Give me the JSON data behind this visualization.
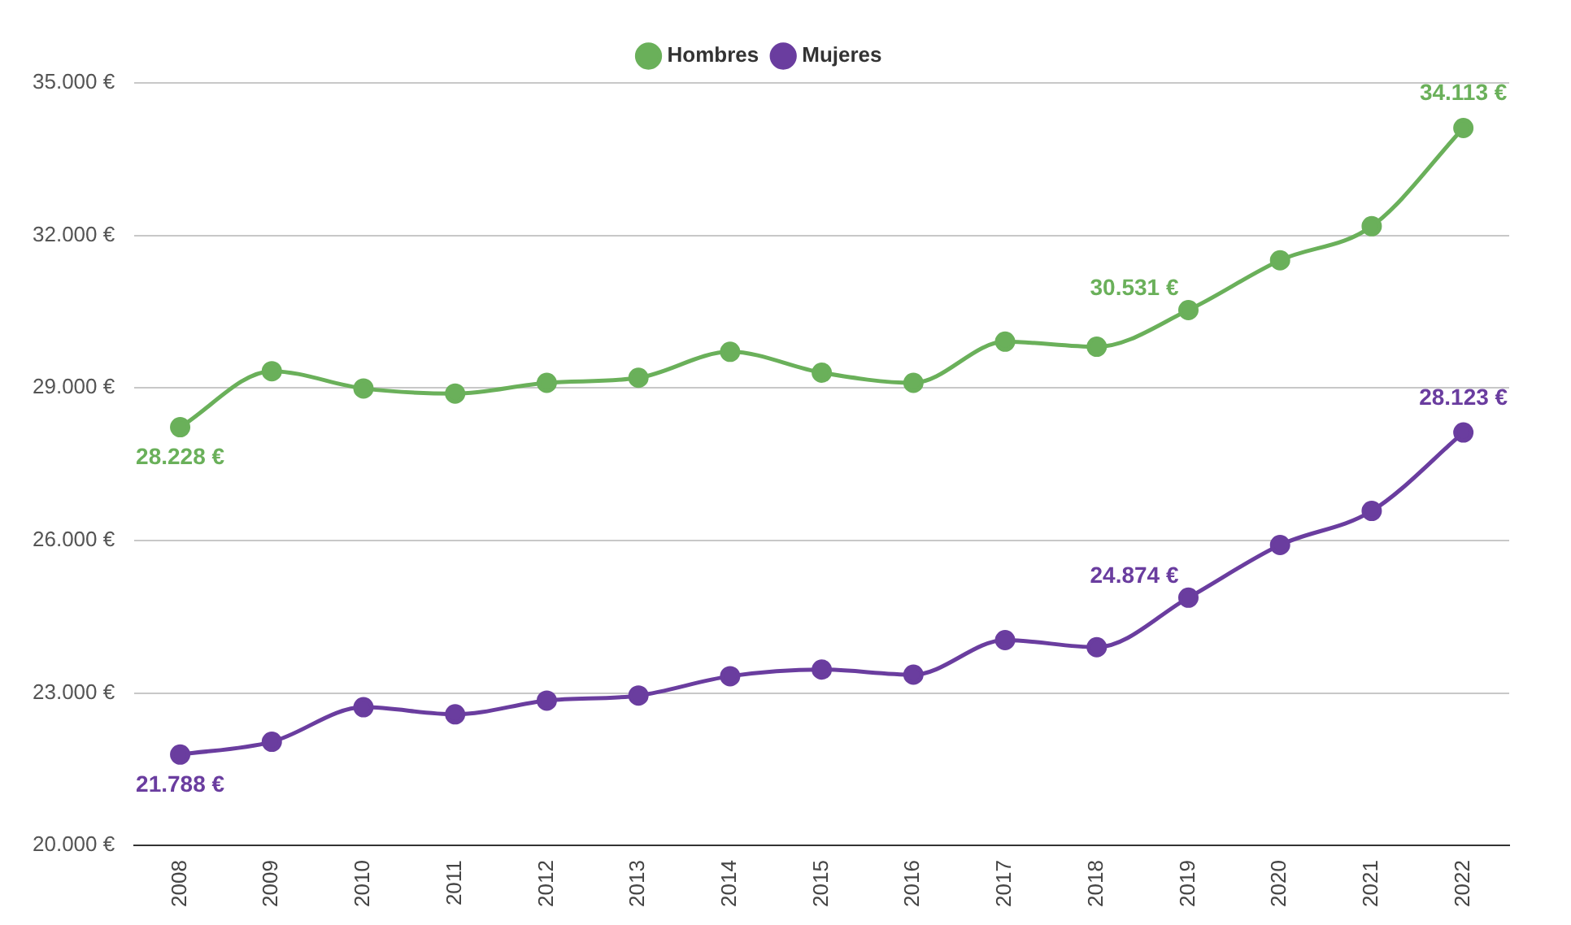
{
  "chart_data": {
    "type": "line",
    "categories": [
      "2008",
      "2009",
      "2010",
      "2011",
      "2012",
      "2013",
      "2014",
      "2015",
      "2016",
      "2017",
      "2018",
      "2019",
      "2020",
      "2021",
      "2022"
    ],
    "series": [
      {
        "name": "Hombres",
        "color": "#6ab05a",
        "values": [
          28228,
          29330,
          28990,
          28890,
          29100,
          29200,
          29710,
          29300,
          29100,
          29910,
          29810,
          30531,
          31510,
          32180,
          34113
        ],
        "value_labels": [
          "28.228 €",
          null,
          null,
          null,
          null,
          null,
          null,
          null,
          null,
          null,
          null,
          "30.531 €",
          null,
          null,
          "34.113 €"
        ]
      },
      {
        "name": "Mujeres",
        "color": "#6a3d9f",
        "values": [
          21788,
          22040,
          22720,
          22580,
          22850,
          22950,
          23330,
          23460,
          23360,
          24040,
          23900,
          24874,
          25910,
          26580,
          28123
        ],
        "value_labels": [
          "21.788 €",
          null,
          null,
          null,
          null,
          null,
          null,
          null,
          null,
          null,
          null,
          "24.874 €",
          null,
          null,
          "28.123 €"
        ]
      }
    ],
    "ylim": [
      20000,
      35000
    ],
    "yticks": [
      {
        "value": 20000,
        "label": "20.000 €"
      },
      {
        "value": 23000,
        "label": "23.000 €"
      },
      {
        "value": 26000,
        "label": "26.000 €"
      },
      {
        "value": 29000,
        "label": "29.000 €"
      },
      {
        "value": 32000,
        "label": "32.000 €"
      },
      {
        "value": 35000,
        "label": "35.000 €"
      }
    ],
    "grid": "y",
    "legend": "top",
    "marker": "circle",
    "line_style": "solid"
  }
}
